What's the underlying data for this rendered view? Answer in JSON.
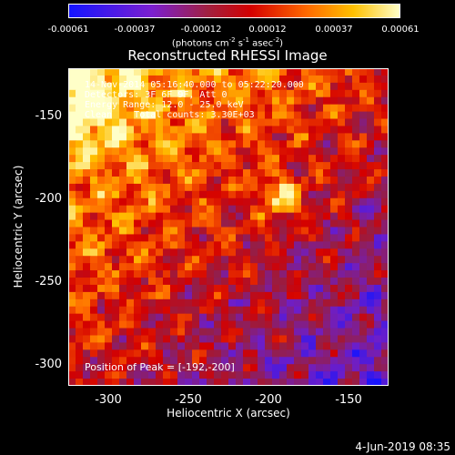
{
  "colorbar": {
    "ticks": [
      "-0.00061",
      "-0.00037",
      "-0.00012",
      "0.00012",
      "0.00037",
      "0.00061"
    ],
    "unit_label": "(photons cm",
    "unit_exp1": "-2",
    "unit_mid": " s",
    "unit_exp2": "-1",
    "unit_mid2": " asec",
    "unit_exp3": "-2",
    "unit_end": ")"
  },
  "chart_data": {
    "type": "heatmap",
    "title": "Reconstructed RHESSI Image",
    "xlabel": "Heliocentric X (arcsec)",
    "ylabel": "Heliocentric Y (arcsec)",
    "xlim": [
      -325,
      -125
    ],
    "ylim": [
      -315,
      -120
    ],
    "xticks": [
      "-300",
      "-250",
      "-200",
      "-150"
    ],
    "yticks": [
      "-150",
      "-200",
      "-250",
      "-300"
    ],
    "color_range": [
      -0.00061,
      0.00061
    ],
    "peak_position": [
      -192,
      -200
    ],
    "annotations": [
      "14-Nov-2014 05:16:40.000 to 05:22:20.000",
      "Detectors: 3F 6F 9F, Att 0",
      "Energy Range: 12.0 - 25.0 keV",
      "Clean    Total counts: 3.30E+03"
    ],
    "peak_label": "Position of Peak = [-192,-200]"
  },
  "footer": {
    "date": "4-Jun-2019 08:35"
  }
}
